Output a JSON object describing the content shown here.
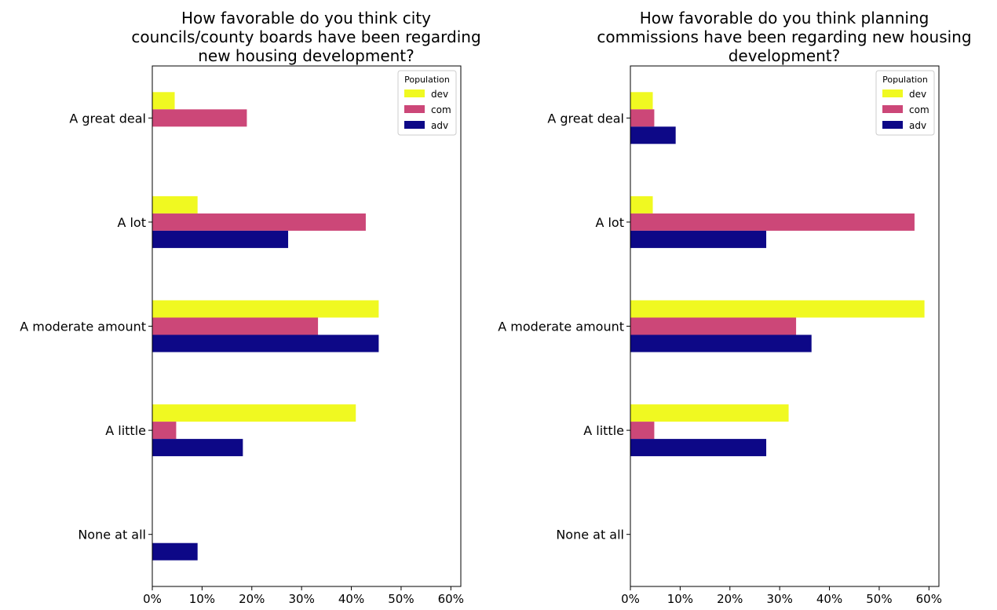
{
  "chart_data": [
    {
      "type": "bar",
      "orientation": "horizontal",
      "title_lines": [
        "How favorable do you think city",
        "councils/county boards have been regarding",
        "new housing development?"
      ],
      "categories": [
        "A great deal",
        "A lot",
        "A moderate amount",
        "A little",
        "None at all"
      ],
      "series": [
        {
          "name": "dev",
          "color": "#f0f921",
          "values": [
            4.5,
            9.1,
            45.5,
            40.9,
            0
          ]
        },
        {
          "name": "com",
          "color": "#cc4778",
          "values": [
            19.0,
            42.9,
            33.3,
            4.8,
            0
          ]
        },
        {
          "name": "adv",
          "color": "#0d0887",
          "values": [
            0,
            27.3,
            45.5,
            18.2,
            9.1
          ]
        }
      ],
      "xlim": [
        0,
        62
      ],
      "xticks": [
        0,
        10,
        20,
        30,
        40,
        50,
        60
      ],
      "xtick_labels": [
        "0%",
        "10%",
        "20%",
        "30%",
        "40%",
        "50%",
        "60%"
      ],
      "legend": {
        "title": "Population",
        "placement": "top-right"
      },
      "grid": false
    },
    {
      "type": "bar",
      "orientation": "horizontal",
      "title_lines": [
        "How favorable do you think planning",
        "commissions have been regarding new housing",
        "development?"
      ],
      "categories": [
        "A great deal",
        "A lot",
        "A moderate amount",
        "A little",
        "None at all"
      ],
      "series": [
        {
          "name": "dev",
          "color": "#f0f921",
          "values": [
            4.5,
            4.5,
            59.1,
            31.8,
            0
          ]
        },
        {
          "name": "com",
          "color": "#cc4778",
          "values": [
            4.8,
            57.1,
            33.3,
            4.8,
            0
          ]
        },
        {
          "name": "adv",
          "color": "#0d0887",
          "values": [
            9.1,
            27.3,
            36.4,
            27.3,
            0
          ]
        }
      ],
      "xlim": [
        0,
        62
      ],
      "xticks": [
        0,
        10,
        20,
        30,
        40,
        50,
        60
      ],
      "xtick_labels": [
        "0%",
        "10%",
        "20%",
        "30%",
        "40%",
        "50%",
        "60%"
      ],
      "legend": {
        "title": "Population",
        "placement": "top-right"
      },
      "grid": false
    }
  ]
}
